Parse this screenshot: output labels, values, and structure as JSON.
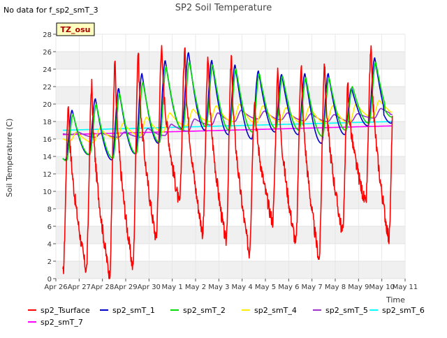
{
  "chart_data": {
    "type": "line",
    "title": "SP2 Soil Temperature",
    "no_data_note": "No data for f_sp2_smT_3",
    "site_badge": "TZ_osu",
    "xlabel": "Time",
    "ylabel": "Soil Temperature (C)",
    "ylim": [
      0,
      28
    ],
    "xlim": [
      0,
      15
    ],
    "yticks": [
      0,
      2,
      4,
      6,
      8,
      10,
      12,
      14,
      16,
      18,
      20,
      22,
      24,
      26,
      28
    ],
    "xtick_labels": [
      "Apr 26",
      "Apr 27",
      "Apr 28",
      "Apr 29",
      "Apr 30",
      "May 1",
      "May 2",
      "May 3",
      "May 4",
      "May 5",
      "May 6",
      "May 7",
      "May 8",
      "May 9",
      "May 10",
      "May 11"
    ],
    "x_days": [
      0.3,
      14.45
    ],
    "series": [
      {
        "name": "sp2_Tsurface",
        "color": "#ff0000",
        "width": 1.6,
        "kind": "surface",
        "min": [
          0.5,
          0.9,
          0.3,
          1.2,
          4.5,
          8.5,
          5.2,
          4.2,
          3.0,
          6.5,
          4.0,
          2.2,
          5.3,
          8.5,
          4.5
        ],
        "max": [
          20.2,
          22.5,
          25.0,
          26.3,
          27.0,
          26.3,
          25.5,
          25.3,
          21.0,
          23.7,
          24.8,
          25.0,
          22.0,
          26.3
        ]
      },
      {
        "name": "sp2_smT_1",
        "color": "#0000cc",
        "width": 1.6,
        "kind": "sensor",
        "min": [
          13.6,
          14.2,
          13.6,
          14.3,
          15.5,
          17.2,
          17.0,
          16.5,
          16.0,
          16.8,
          16.5,
          15.5,
          16.5,
          17.5,
          17.8
        ],
        "max": [
          19.3,
          20.6,
          21.8,
          23.5,
          25.0,
          25.9,
          25.0,
          24.5,
          23.8,
          23.4,
          23.5,
          23.5,
          21.8,
          25.3
        ],
        "lag": 0.08
      },
      {
        "name": "sp2_smT_2",
        "color": "#00dd00",
        "width": 1.6,
        "kind": "sensor",
        "min": [
          13.5,
          14.2,
          13.8,
          14.3,
          15.6,
          17.0,
          17.4,
          17.0,
          16.8,
          17.2,
          17.0,
          16.3,
          17.0,
          17.8,
          18.5
        ],
        "max": [
          18.8,
          20.0,
          21.2,
          22.5,
          24.3,
          24.8,
          24.5,
          24.0,
          23.5,
          23.2,
          23.0,
          23.0,
          22.0,
          24.8
        ],
        "lag": 0.12
      },
      {
        "name": "sp2_smT_4",
        "color": "#ffee00",
        "width": 1.6,
        "kind": "sensor",
        "min": [
          15.8,
          15.6,
          16.0,
          16.4,
          16.8,
          17.5,
          18.0,
          18.0,
          17.8,
          18.0,
          17.8,
          17.8,
          17.8,
          18.5,
          19.0
        ],
        "max": [
          16.8,
          17.2,
          17.8,
          18.5,
          19.0,
          19.4,
          19.8,
          20.0,
          19.8,
          19.6,
          19.7,
          19.8,
          20.0,
          20.4
        ],
        "lag": 0.28
      },
      {
        "name": "sp2_smT_5",
        "color": "#9933cc",
        "width": 1.6,
        "kind": "sensor",
        "min": [
          16.5,
          16.2,
          16.2,
          16.2,
          16.4,
          16.9,
          17.6,
          18.0,
          18.3,
          18.2,
          18.1,
          18.0,
          18.0,
          18.4,
          18.8
        ],
        "max": [
          16.8,
          16.7,
          16.8,
          17.2,
          17.7,
          18.3,
          19.0,
          19.3,
          19.2,
          19.0,
          18.9,
          18.8,
          18.9,
          19.5
        ],
        "lag": 0.35
      },
      {
        "name": "sp2_smT_6",
        "color": "#00ffff",
        "width": 1.6,
        "kind": "linear",
        "start": 17.0,
        "end": 18.0
      },
      {
        "name": "sp2_smT_7",
        "color": "#ff00ff",
        "width": 1.6,
        "kind": "linear",
        "start": 16.5,
        "end": 17.5
      }
    ]
  }
}
